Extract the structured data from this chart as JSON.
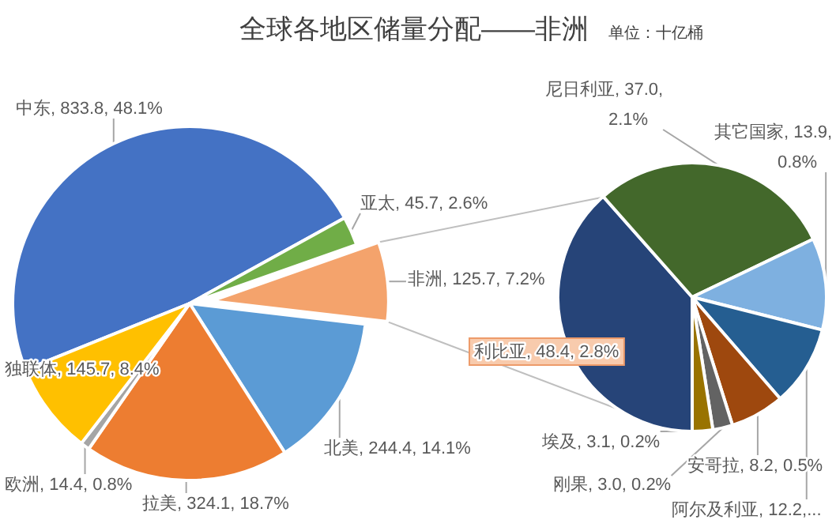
{
  "chart_data": [
    {
      "type": "pie",
      "title": "全球各地区储量分配——非洲",
      "subtitle": "单位：十亿桶",
      "categories": [
        "中东",
        "亚太",
        "非洲",
        "北美",
        "拉美",
        "欧洲",
        "独联体"
      ],
      "values": [
        833.8,
        45.7,
        125.7,
        244.4,
        324.1,
        14.4,
        145.7
      ],
      "colors": [
        "#4472c4",
        "#70ad47",
        "#f4a36c",
        "#5b9bd5",
        "#ed7d31",
        "#a5a5a5",
        "#ffc000"
      ],
      "value_labels": [
        "833.8, 48.1%",
        "45.7, 2.6%",
        "125.7, 7.2%",
        "244.4, 14.1%",
        "324.1, 18.7%",
        "14.4, 0.8%",
        "145.7, 8.4%"
      ]
    },
    {
      "type": "pie",
      "categories": [
        "利比亚",
        "尼日利亚",
        "其它国家",
        "阿尔及利亚",
        "安哥拉",
        "刚果",
        "埃及"
      ],
      "values": [
        48.4,
        37.0,
        13.9,
        12.2,
        8.2,
        3.0,
        3.1
      ],
      "colors": [
        "#264478",
        "#43682b",
        "#7eb0e0",
        "#255e91",
        "#9e480e",
        "#636363",
        "#997300"
      ],
      "value_labels": [
        "48.4, 2.8%",
        "37.0, 2.1%",
        "13.9, 0.8%",
        "12.2,...",
        "8.2, 0.5%",
        "3.0, 0.2%",
        "3.1, 0.2%"
      ]
    }
  ]
}
